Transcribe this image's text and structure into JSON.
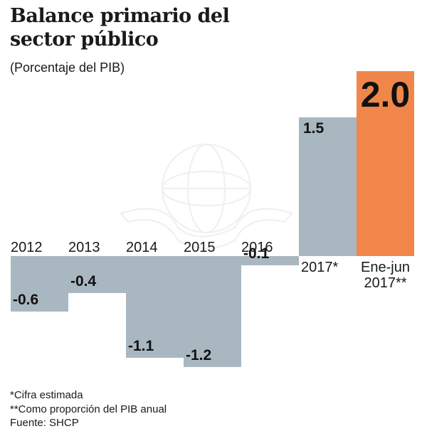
{
  "header": {
    "title": "Balance primario del sector público",
    "subtitle": "(Porcentaje del PIB)"
  },
  "chart_data": {
    "type": "bar",
    "categories": [
      "2012",
      "2013",
      "2014",
      "2015",
      "2016",
      "2017*",
      "Ene-jun 2017**"
    ],
    "values": [
      -0.6,
      -0.4,
      -1.1,
      -1.2,
      -0.1,
      1.5,
      2.0
    ],
    "value_labels": [
      "-0.6",
      "-0.4",
      "-1.1",
      "-1.2",
      "-0.1",
      "1.5",
      "2.0"
    ],
    "title": "Balance primario del sector público",
    "subtitle": "(Porcentaje del PIB)",
    "xlabel": "",
    "ylabel": "",
    "ylim": [
      -1.2,
      2.0
    ],
    "grid": false,
    "legend": "none",
    "colors": {
      "default": "#a9b7c0",
      "highlight": "#f0864a"
    }
  },
  "footer": {
    "notes": [
      "*Cifra estimada",
      "**Como proporción del PIB anual",
      "Fuente: SHCP"
    ]
  }
}
